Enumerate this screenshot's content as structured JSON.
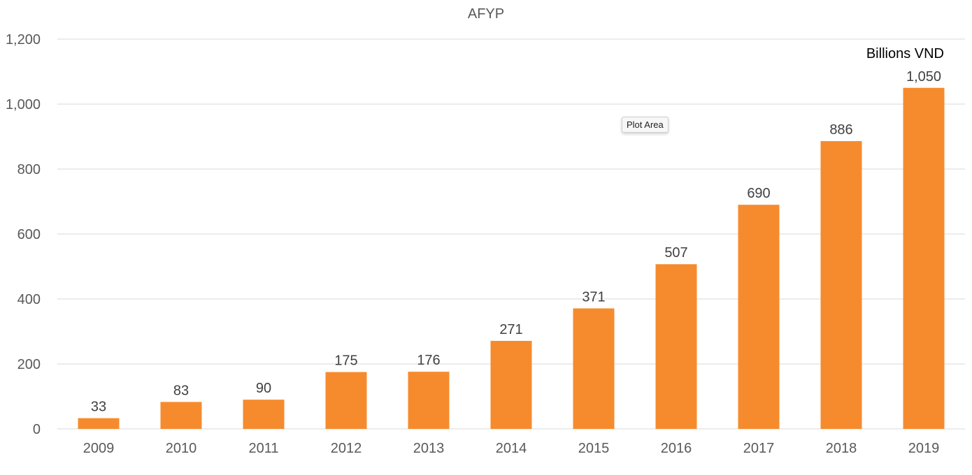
{
  "chart_data": {
    "type": "bar",
    "title": "AFYP",
    "unit_label": "Billions VND",
    "categories": [
      "2009",
      "2010",
      "2011",
      "2012",
      "2013",
      "2014",
      "2015",
      "2016",
      "2017",
      "2018",
      "2019"
    ],
    "values": [
      33,
      83,
      90,
      175,
      176,
      271,
      371,
      507,
      690,
      886,
      1050
    ],
    "data_labels": [
      "33",
      "83",
      "90",
      "175",
      "176",
      "271",
      "371",
      "507",
      "690",
      "886",
      "1,050"
    ],
    "ylim": [
      0,
      1200
    ],
    "yticks": [
      0,
      200,
      400,
      600,
      800,
      1000,
      1200
    ],
    "ytick_labels": [
      "0",
      "200",
      "400",
      "600",
      "800",
      "1,000",
      "1,200"
    ],
    "grid": true,
    "bar_color": "#F68B2E"
  },
  "tooltip": {
    "text": "Plot Area"
  }
}
